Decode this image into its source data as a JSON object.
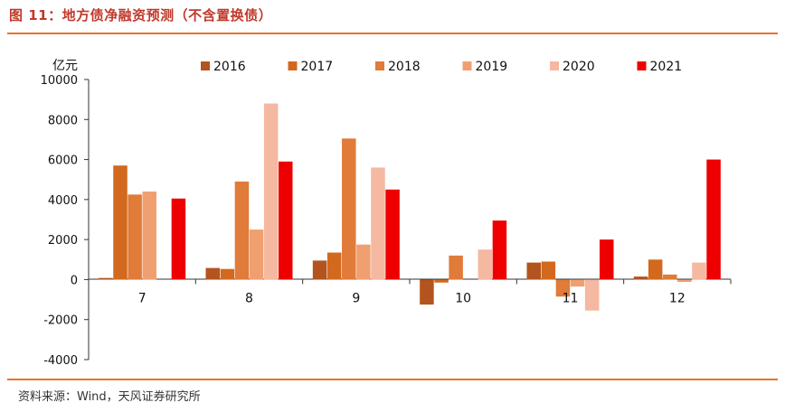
{
  "header": {
    "title": "图 11：地方债净融资预测（不含置换债）"
  },
  "footer": {
    "source": "资料来源：Wind，天风证券研究所"
  },
  "chart_data": {
    "type": "bar",
    "ylabel": "亿元",
    "ylim": [
      -4000,
      10000
    ],
    "yticks": [
      10000,
      8000,
      6000,
      4000,
      2000,
      0,
      -2000,
      -4000
    ],
    "categories": [
      "7",
      "8",
      "9",
      "10",
      "11",
      "12"
    ],
    "legend_position": "top",
    "series": [
      {
        "name": "2016",
        "color": "#b3541e",
        "values": [
          80,
          580,
          950,
          -1250,
          850,
          150
        ]
      },
      {
        "name": "2017",
        "color": "#d2691e",
        "values": [
          5700,
          530,
          1350,
          -150,
          900,
          1000
        ]
      },
      {
        "name": "2018",
        "color": "#e07b39",
        "values": [
          4250,
          4900,
          7050,
          1200,
          -850,
          250
        ]
      },
      {
        "name": "2019",
        "color": "#f0a070",
        "values": [
          4400,
          2500,
          1750,
          0,
          -350,
          -120
        ]
      },
      {
        "name": "2020",
        "color": "#f5b8a0",
        "values": [
          0,
          8800,
          5600,
          1500,
          -1550,
          850
        ]
      },
      {
        "name": "2021",
        "color": "#ee0000",
        "values": [
          4050,
          5900,
          4500,
          2950,
          2000,
          6000
        ]
      }
    ]
  }
}
